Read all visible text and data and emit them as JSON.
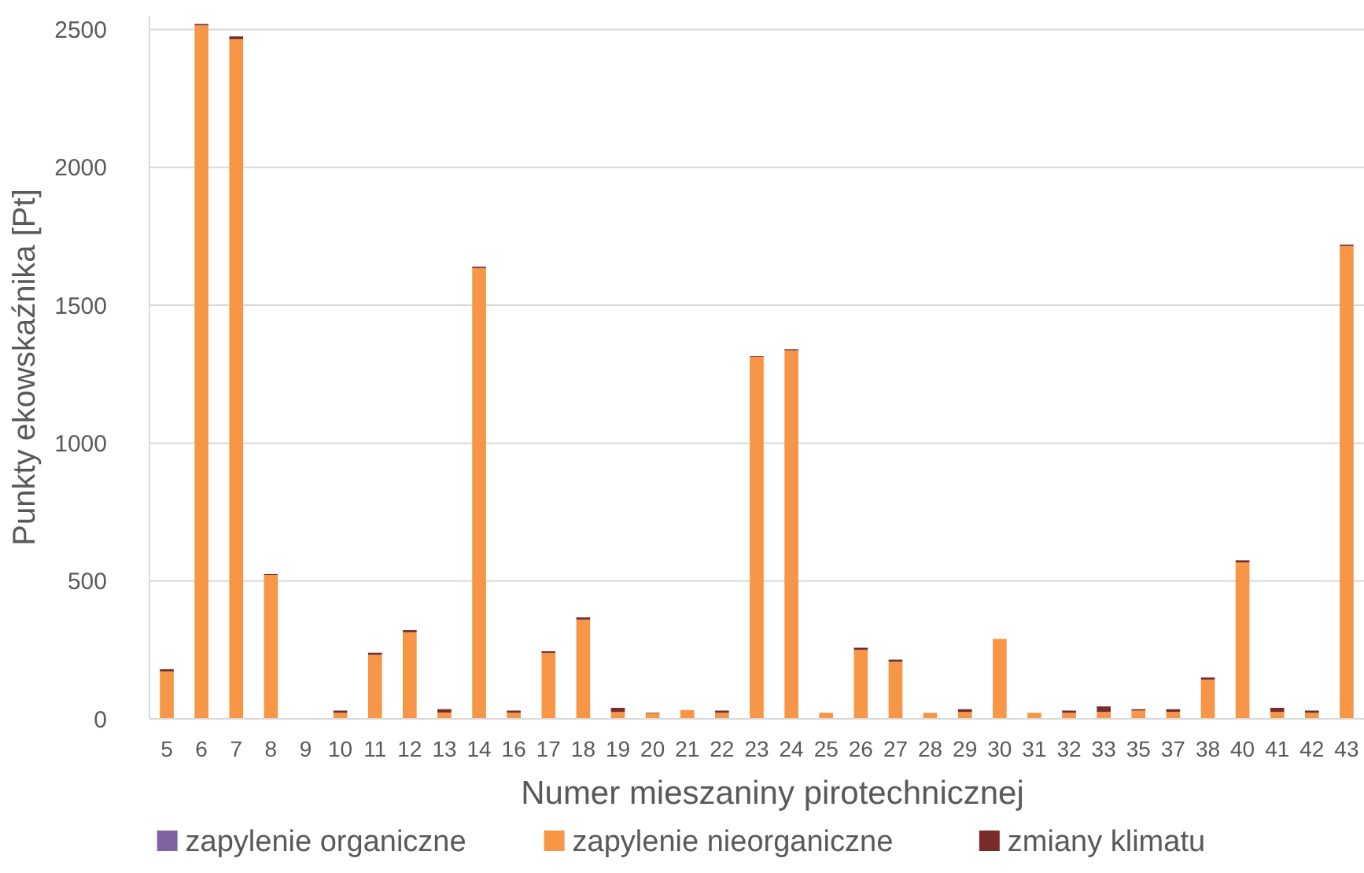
{
  "chart_data": {
    "type": "bar",
    "stacked": true,
    "xlabel": "Numer mieszaniny pirotechnicznej",
    "ylabel": "Punkty ekowskaźnika [Pt]",
    "categories": [
      "5",
      "6",
      "7",
      "8",
      "9",
      "10",
      "11",
      "12",
      "13",
      "14",
      "16",
      "17",
      "18",
      "19",
      "20",
      "21",
      "22",
      "23",
      "24",
      "25",
      "26",
      "27",
      "28",
      "29",
      "30",
      "31",
      "32",
      "33",
      "35",
      "37",
      "38",
      "40",
      "41",
      "42",
      "43"
    ],
    "series": [
      {
        "name": "zapylenie organiczne",
        "color": "#8064a2",
        "values": [
          0,
          0,
          0,
          0,
          0,
          0,
          0,
          0,
          0,
          0,
          0,
          0,
          0,
          0,
          0,
          0,
          0,
          0,
          0,
          0,
          0,
          0,
          0,
          0,
          0,
          0,
          0,
          0,
          0,
          0,
          0,
          0,
          0,
          0,
          0
        ]
      },
      {
        "name": "zapylenie nieorganiczne",
        "color": "#f79646",
        "values": [
          172,
          2515,
          2465,
          522,
          0,
          22,
          232,
          314,
          23,
          1635,
          22,
          239,
          360,
          25,
          20,
          32,
          22,
          1312,
          1336,
          22,
          250,
          207,
          22,
          25,
          290,
          22,
          22,
          25,
          30,
          25,
          142,
          567,
          25,
          22,
          1715
        ]
      },
      {
        "name": "zmiany klimatu",
        "color": "#772c2a",
        "values": [
          8,
          5,
          10,
          3,
          0,
          8,
          8,
          8,
          12,
          5,
          8,
          6,
          8,
          15,
          2,
          0,
          8,
          3,
          4,
          0,
          8,
          8,
          0,
          10,
          0,
          0,
          8,
          20,
          5,
          10,
          8,
          8,
          15,
          8,
          5
        ]
      }
    ],
    "ylim": [
      0,
      2550
    ],
    "yticks": [
      0,
      500,
      1000,
      1500,
      2000,
      2500
    ],
    "grid": "y",
    "legend": "bottom"
  }
}
